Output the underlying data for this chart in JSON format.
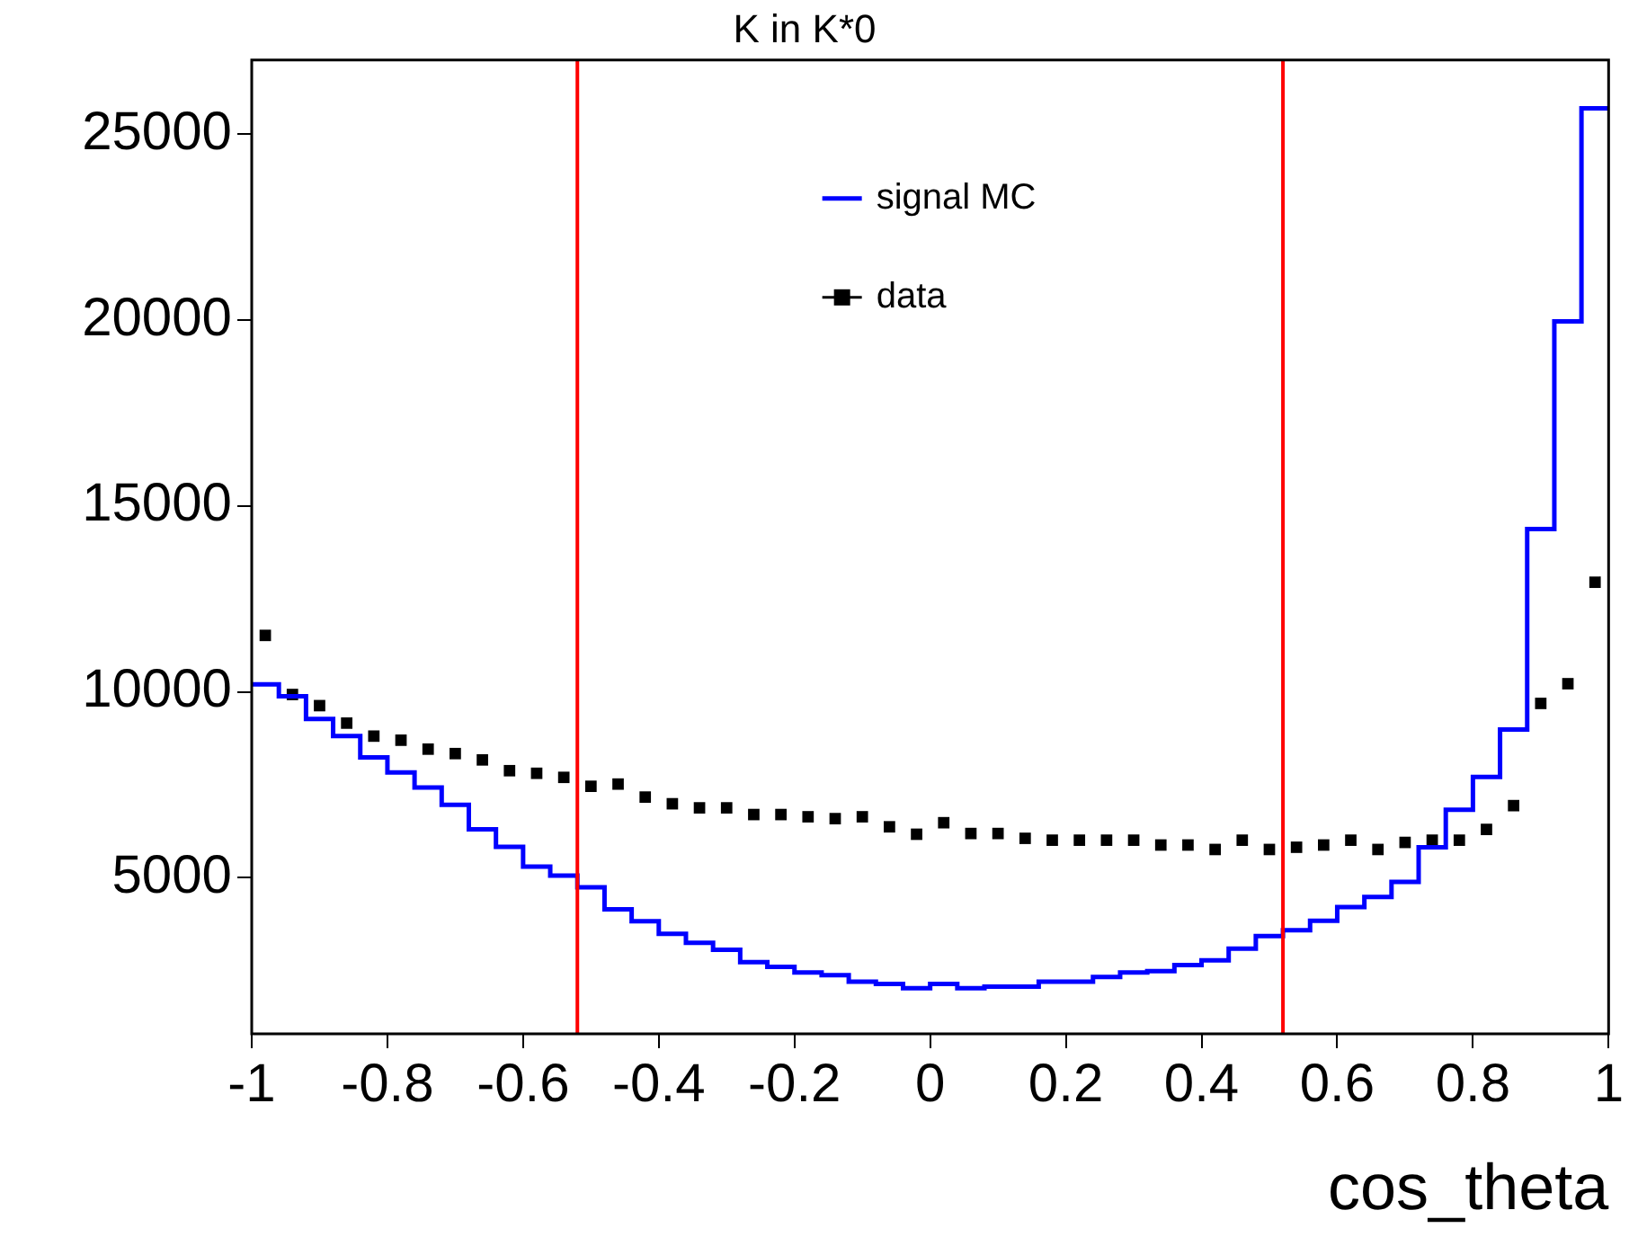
{
  "chart_data": {
    "type": "histogram",
    "title": "K in K*0",
    "xlabel": "cos_theta",
    "bins": [
      -1,
      -0.96,
      -0.92,
      -0.88,
      -0.84,
      -0.8,
      -0.76,
      -0.72,
      -0.68,
      -0.64,
      -0.6,
      -0.56,
      -0.52,
      -0.48,
      -0.44,
      -0.4,
      -0.36,
      -0.32,
      -0.28,
      -0.24,
      -0.2,
      -0.16,
      -0.12,
      -0.08,
      -0.04,
      0,
      0.04,
      0.08,
      0.12,
      0.16,
      0.2,
      0.24,
      0.28,
      0.32,
      0.36,
      0.4,
      0.44,
      0.48,
      0.52,
      0.56,
      0.6,
      0.64,
      0.68,
      0.72,
      0.76,
      0.8,
      0.84,
      0.88,
      0.92,
      0.96,
      1
    ],
    "series": [
      {
        "name": "signal MC",
        "color": "#0000ff",
        "values": [
          10200,
          9880,
          9270,
          8810,
          8240,
          7830,
          7430,
          6960,
          6300,
          5830,
          5300,
          5060,
          4740,
          4150,
          3830,
          3490,
          3250,
          3060,
          2730,
          2600,
          2450,
          2380,
          2200,
          2140,
          2030,
          2140,
          2030,
          2070,
          2070,
          2200,
          2200,
          2330,
          2450,
          2490,
          2650,
          2780,
          3090,
          3430,
          3590,
          3840,
          4210,
          4480,
          4890,
          5820,
          6830,
          7710,
          8990,
          14380,
          19970,
          25700
        ]
      },
      {
        "name": "data",
        "type": "scatter",
        "marker": "square",
        "color": "#000000",
        "x": [
          -0.98,
          -0.94,
          -0.9,
          -0.86,
          -0.82,
          -0.78,
          -0.74,
          -0.7,
          -0.66,
          -0.62,
          -0.58,
          -0.54,
          -0.5,
          -0.46,
          -0.42,
          -0.38,
          -0.34,
          -0.3,
          -0.26,
          -0.22,
          -0.18,
          -0.14,
          -0.1,
          -0.06,
          -0.02,
          0.02,
          0.06,
          0.1,
          0.14,
          0.18,
          0.22,
          0.26,
          0.3,
          0.34,
          0.38,
          0.42,
          0.46,
          0.5,
          0.54,
          0.58,
          0.62,
          0.66,
          0.7,
          0.74,
          0.78,
          0.82,
          0.86,
          0.9,
          0.94,
          0.98
        ],
        "values": [
          11520,
          9930,
          9630,
          9160,
          8810,
          8700,
          8460,
          8340,
          8170,
          7880,
          7810,
          7700,
          7460,
          7520,
          7170,
          6990,
          6880,
          6880,
          6700,
          6700,
          6640,
          6590,
          6640,
          6370,
          6170,
          6480,
          6190,
          6190,
          6060,
          6010,
          6010,
          6010,
          6010,
          5880,
          5880,
          5760,
          6010,
          5760,
          5820,
          5880,
          6010,
          5760,
          5950,
          6010,
          6010,
          6300,
          6940,
          9690,
          10220,
          12950
        ]
      }
    ],
    "xlim": [
      -1,
      1
    ],
    "xticks": [
      -1,
      -0.8,
      -0.6,
      -0.4,
      -0.2,
      0,
      0.2,
      0.4,
      0.6,
      0.8,
      1
    ],
    "ylim": [
      800,
      27000
    ],
    "yticks": [
      5000,
      10000,
      15000,
      20000,
      25000
    ],
    "ref_lines": [
      {
        "axis": "x",
        "value": -0.52,
        "color": "#ff0000"
      },
      {
        "axis": "x",
        "value": 0.52,
        "color": "#ff0000"
      }
    ],
    "legend": "top"
  }
}
